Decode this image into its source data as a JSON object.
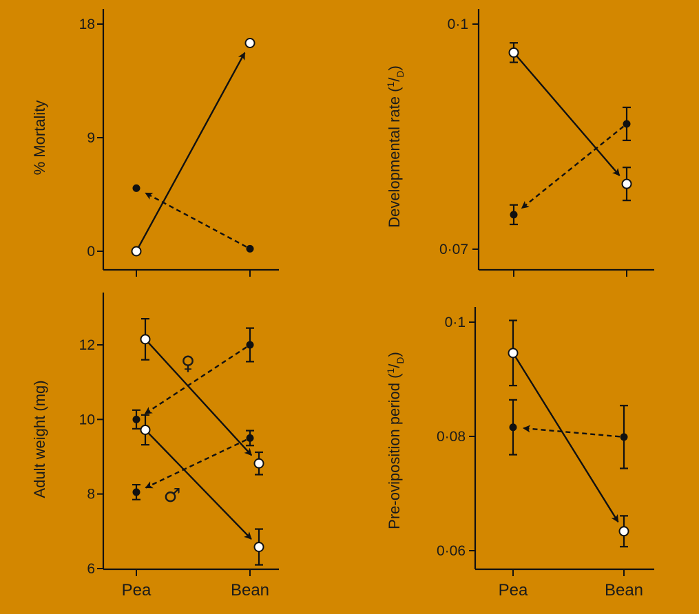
{
  "chart_data": [
    {
      "type": "line",
      "panel": "top-left",
      "ylabel": "% Mortality",
      "categories": [
        "Pea",
        "Bean"
      ],
      "ylim": [
        0,
        18
      ],
      "yticks": [
        {
          "value": 0,
          "label": "0"
        },
        {
          "value": 9,
          "label": "9"
        },
        {
          "value": 18,
          "label": "18"
        }
      ],
      "series": [
        {
          "marker": "open",
          "line": "solid",
          "arrow_to": "Bean",
          "values": [
            0,
            16.5
          ]
        },
        {
          "marker": "filled",
          "line": "dashed",
          "arrow_to": "Pea",
          "values": [
            5,
            0.2
          ]
        }
      ]
    },
    {
      "type": "line",
      "panel": "top-right",
      "ylabel": "Developmental rate (1/D)",
      "ylabel_parts": {
        "main": "Developmental rate (",
        "sup": "1",
        "slash": "/",
        "sub": "D",
        "close": ")"
      },
      "categories": [
        "Pea",
        "Bean"
      ],
      "ylim": [
        0.07,
        0.1
      ],
      "yticks": [
        {
          "value": 0.07,
          "label": "0·07"
        },
        {
          "value": 0.1,
          "label": "0·1"
        }
      ],
      "series": [
        {
          "marker": "open",
          "line": "solid",
          "arrow_to": "Bean",
          "values": [
            0.0962,
            0.0787
          ],
          "errors": [
            0.0013,
            0.0022
          ]
        },
        {
          "marker": "filled",
          "line": "dashed",
          "arrow_to": "Pea",
          "values": [
            0.0746,
            0.0867
          ],
          "errors": [
            0.0013,
            0.0022
          ]
        }
      ]
    },
    {
      "type": "line",
      "panel": "bottom-left",
      "ylabel": "Adult weight (mg)",
      "categories": [
        "Pea",
        "Bean"
      ],
      "ylim": [
        6,
        13
      ],
      "yticks": [
        {
          "value": 6,
          "label": "6"
        },
        {
          "value": 8,
          "label": "8"
        },
        {
          "value": 10,
          "label": "10"
        },
        {
          "value": 12,
          "label": "12"
        }
      ],
      "annotations": [
        {
          "text": "♀",
          "near": "female"
        },
        {
          "text": "♂",
          "near": "male"
        }
      ],
      "series": [
        {
          "marker": "open",
          "line": "solid",
          "arrow_to": "Bean",
          "x_offset": 0.25,
          "values": [
            12.15,
            8.82
          ],
          "errors": [
            0.55,
            0.3
          ]
        },
        {
          "marker": "filled",
          "line": "dashed",
          "arrow_to": "Pea",
          "x_offset": 0,
          "values": [
            10.0,
            12.0
          ],
          "errors": [
            0.25,
            0.45
          ]
        },
        {
          "marker": "open",
          "line": "solid",
          "arrow_to": "Bean",
          "x_offset": 0.25,
          "values": [
            9.72,
            6.58
          ],
          "errors": [
            0.4,
            0.48
          ]
        },
        {
          "marker": "filled",
          "line": "dashed",
          "arrow_to": "Pea",
          "x_offset": 0,
          "values": [
            8.05,
            9.5
          ],
          "errors": [
            0.2,
            0.2
          ]
        }
      ]
    },
    {
      "type": "line",
      "panel": "bottom-right",
      "ylabel": "Pre-oviposition period (1/D)",
      "ylabel_parts": {
        "main": "Pre-oviposition period (",
        "sup": "1",
        "slash": "/",
        "sub": "D",
        "close": ")"
      },
      "categories": [
        "Pea",
        "Bean"
      ],
      "ylim": [
        0.06,
        0.1
      ],
      "yticks": [
        {
          "value": 0.06,
          "label": "0·06"
        },
        {
          "value": 0.08,
          "label": "0·08"
        },
        {
          "value": 0.1,
          "label": "0·1"
        }
      ],
      "series": [
        {
          "marker": "open",
          "line": "solid",
          "arrow_to": "Bean",
          "values": [
            0.0946,
            0.0634
          ],
          "errors": [
            0.0057,
            0.0027
          ]
        },
        {
          "marker": "filled",
          "line": "dashed",
          "arrow_to": "Pea",
          "values": [
            0.0816,
            0.0799
          ],
          "errors": [
            0.0048,
            0.0055
          ]
        }
      ]
    }
  ],
  "colors": {
    "background": "#D38700",
    "ink": "#111111"
  }
}
